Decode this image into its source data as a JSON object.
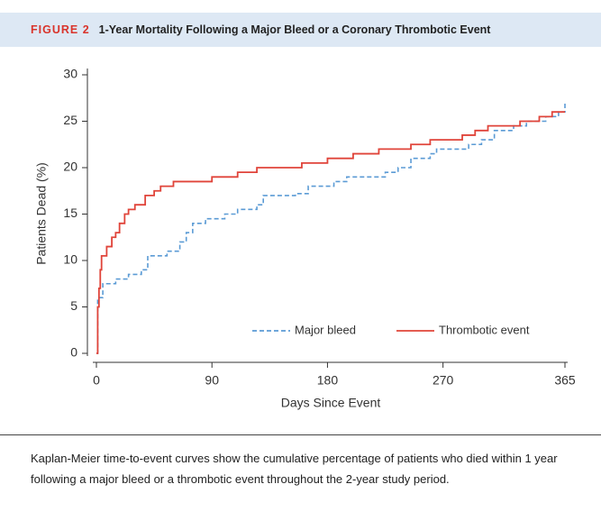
{
  "figure_label": "FIGURE 2",
  "caption": "Kaplan-Meier time-to-event curves show the cumulative percentage of patients who died within 1 year following a major bleed or a thrombotic event throughout the 2-year study period.",
  "chart_data": {
    "type": "line",
    "step": true,
    "title": "1-Year Mortality Following a Major Bleed or a Coronary Thrombotic Event",
    "x_label": "Days Since Event",
    "y_label": "Patients Dead (%)",
    "xlim": [
      0,
      365
    ],
    "xticks": [
      0,
      90,
      180,
      270,
      365
    ],
    "ylim": [
      0,
      30
    ],
    "yticks": [
      0,
      5,
      10,
      15,
      20,
      25,
      30
    ],
    "grid": false,
    "legend": "lower right",
    "series": [
      {
        "name": "Major bleed",
        "color": "#5b9bd5",
        "dashed": true,
        "x": [
          0,
          1,
          5,
          15,
          25,
          35,
          40,
          55,
          65,
          70,
          75,
          85,
          100,
          110,
          125,
          130,
          155,
          165,
          185,
          195,
          225,
          235,
          245,
          260,
          265,
          290,
          300,
          310,
          325,
          335,
          350,
          360,
          365
        ],
        "values": [
          0,
          6,
          7.5,
          8,
          8.5,
          9,
          10.5,
          11,
          12,
          13,
          14,
          14.5,
          15,
          15.5,
          16,
          17,
          17.2,
          18,
          18.5,
          19,
          19.5,
          20,
          21,
          21.5,
          22,
          22.5,
          23,
          24,
          24.5,
          25,
          25.5,
          26,
          27
        ]
      },
      {
        "name": "Thrombotic event",
        "color": "#e0443a",
        "dashed": false,
        "x": [
          0,
          1,
          2,
          3,
          4,
          8,
          12,
          15,
          18,
          22,
          25,
          30,
          38,
          45,
          50,
          60,
          90,
          110,
          125,
          160,
          180,
          200,
          220,
          245,
          260,
          285,
          295,
          305,
          330,
          345,
          355,
          365
        ],
        "values": [
          0,
          5,
          7,
          9,
          10.5,
          11.5,
          12.5,
          13,
          14,
          15,
          15.5,
          16,
          17,
          17.5,
          18,
          18.5,
          19,
          19.5,
          20,
          20.5,
          21,
          21.5,
          22,
          22.5,
          23,
          23.5,
          24,
          24.5,
          25,
          25.5,
          26,
          26
        ]
      }
    ]
  }
}
